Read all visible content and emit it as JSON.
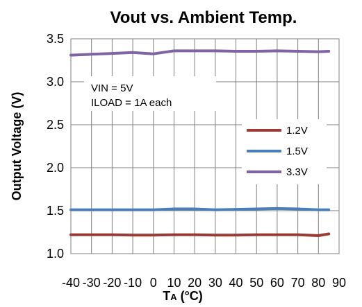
{
  "chart_data": {
    "type": "line",
    "title": "Vout vs. Ambient Temp.",
    "xlabel": {
      "main": "T",
      "sub": "A",
      "unit": " (°C)"
    },
    "ylabel": "Output Voltage (V)",
    "xlim": [
      -40,
      90
    ],
    "ylim": [
      1.0,
      3.5
    ],
    "xticks": [
      -40,
      -30,
      -20,
      -10,
      0,
      10,
      20,
      30,
      40,
      50,
      60,
      70,
      80,
      90
    ],
    "yticks": [
      "1.0",
      "1.5",
      "2.0",
      "2.5",
      "3.0",
      "3.5"
    ],
    "grid": true,
    "legend_position": "right",
    "annotations": [
      "VIN = 5V",
      "ILOAD = 1A each"
    ],
    "x": [
      -40,
      -30,
      -20,
      -10,
      0,
      10,
      20,
      30,
      40,
      50,
      60,
      70,
      80,
      85
    ],
    "series": [
      {
        "name": "1.2V",
        "color": "#9b3b36",
        "values": [
          1.22,
          1.22,
          1.22,
          1.215,
          1.215,
          1.22,
          1.22,
          1.215,
          1.215,
          1.22,
          1.22,
          1.22,
          1.21,
          1.23
        ]
      },
      {
        "name": "1.5V",
        "color": "#4a7ebb",
        "values": [
          1.51,
          1.51,
          1.51,
          1.51,
          1.51,
          1.52,
          1.52,
          1.51,
          1.515,
          1.52,
          1.525,
          1.52,
          1.51,
          1.51
        ]
      },
      {
        "name": "3.3V",
        "color": "#7f63a2",
        "values": [
          3.31,
          3.32,
          3.33,
          3.34,
          3.325,
          3.36,
          3.36,
          3.36,
          3.355,
          3.355,
          3.36,
          3.355,
          3.35,
          3.355
        ]
      }
    ]
  }
}
